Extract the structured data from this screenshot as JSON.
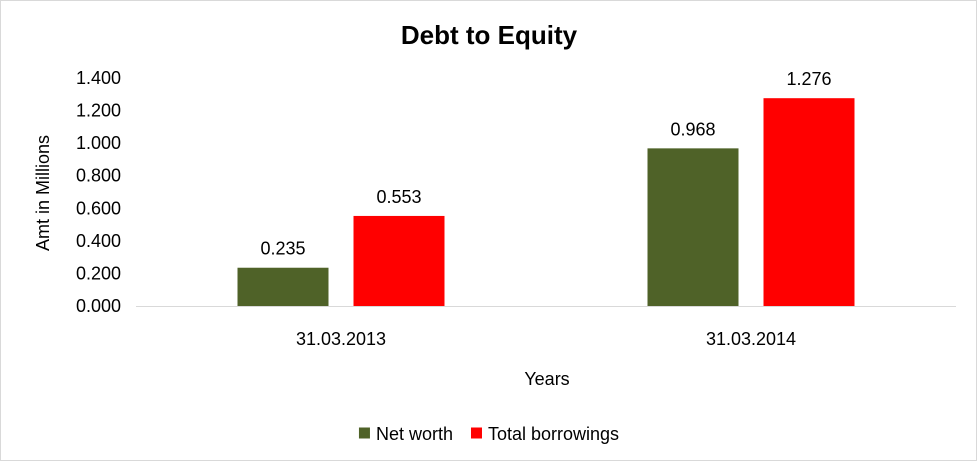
{
  "chart_data": {
    "type": "bar",
    "title": "Debt to Equity",
    "xlabel": "Years",
    "ylabel": "Amt in Millions",
    "categories": [
      "31.03.2013",
      "31.03.2014"
    ],
    "series": [
      {
        "name": "Net worth",
        "values": [
          0.235,
          0.968
        ],
        "color": "#4f6228"
      },
      {
        "name": "Total borrowings",
        "values": [
          0.553,
          1.276
        ],
        "color": "#ff0000"
      }
    ],
    "data_labels": [
      [
        "0.235",
        "0.968"
      ],
      [
        "0.553",
        "1.276"
      ]
    ],
    "ylim": [
      0,
      1.4
    ],
    "yticks": [
      0,
      0.2,
      0.4,
      0.6,
      0.8,
      1.0,
      1.2,
      1.4
    ],
    "ytick_labels": [
      "0.000",
      "0.200",
      "0.400",
      "0.600",
      "0.800",
      "1.000",
      "1.200",
      "1.400"
    ],
    "grid": false,
    "legend_position": "bottom"
  }
}
